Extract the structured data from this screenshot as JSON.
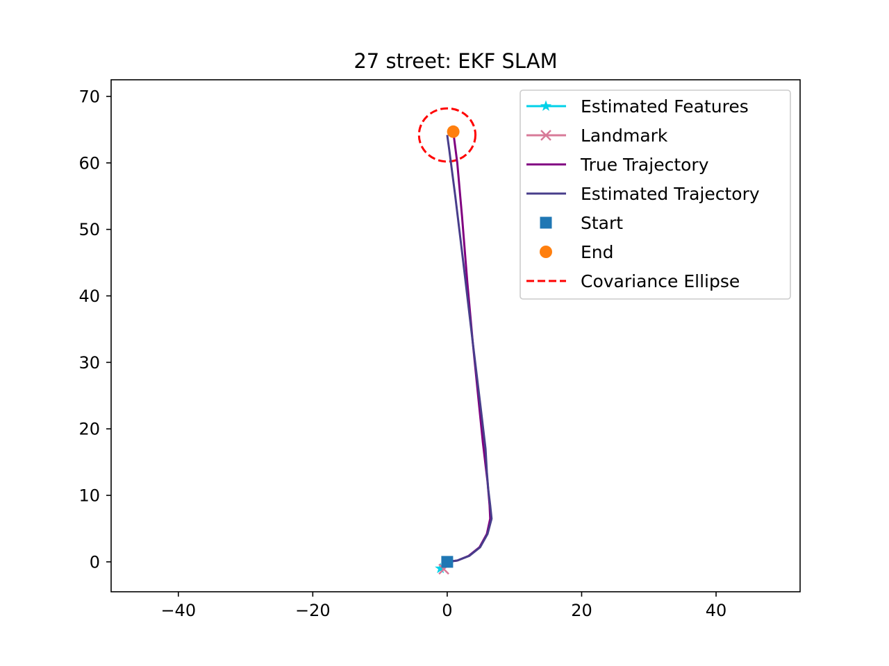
{
  "chart_data": {
    "type": "line",
    "title": "27 street: EKF SLAM",
    "xlabel": "",
    "ylabel": "",
    "xlim": [
      -50,
      52.5
    ],
    "ylim": [
      -4.5,
      72.5
    ],
    "xticks": [
      -40,
      -20,
      0,
      20,
      40
    ],
    "xtick_labels": [
      "−40",
      "−20",
      "0",
      "20",
      "40"
    ],
    "yticks": [
      0,
      10,
      20,
      30,
      40,
      50,
      60,
      70
    ],
    "ytick_labels": [
      "0",
      "10",
      "20",
      "30",
      "40",
      "50",
      "60",
      "70"
    ],
    "grid": false,
    "legend_position": "top-right",
    "series": [
      {
        "name": "Estimated Features",
        "kind": "marker",
        "marker": "star",
        "color": "#00d1e8",
        "points": [
          [
            -1.0,
            -1.0
          ]
        ]
      },
      {
        "name": "Landmark",
        "kind": "marker",
        "marker": "x",
        "color": "#d87a98",
        "points": [
          [
            -0.5,
            -1.1
          ]
        ]
      },
      {
        "name": "True Trajectory",
        "kind": "line",
        "color": "#800080",
        "points": [
          [
            0,
            0
          ],
          [
            1.5,
            0.2
          ],
          [
            3.2,
            0.9
          ],
          [
            4.8,
            2.2
          ],
          [
            5.9,
            4.2
          ],
          [
            6.4,
            6.5
          ],
          [
            6.3,
            8.5
          ],
          [
            6.0,
            12
          ],
          [
            5.3,
            18
          ],
          [
            4.6,
            25
          ],
          [
            3.8,
            33
          ],
          [
            3.0,
            42
          ],
          [
            2.2,
            52
          ],
          [
            1.5,
            60
          ],
          [
            0.9,
            64.7
          ]
        ]
      },
      {
        "name": "Estimated Trajectory",
        "kind": "line",
        "color": "#483d8b",
        "points": [
          [
            0,
            0
          ],
          [
            1.5,
            0.2
          ],
          [
            3.3,
            0.9
          ],
          [
            4.9,
            2.2
          ],
          [
            6.0,
            4.2
          ],
          [
            6.6,
            6.5
          ],
          [
            6.4,
            8.5
          ],
          [
            6.1,
            11
          ],
          [
            5.9,
            13.5
          ],
          [
            5.7,
            17
          ],
          [
            5.0,
            23
          ],
          [
            3.8,
            33
          ],
          [
            2.4,
            45
          ],
          [
            1.2,
            55
          ],
          [
            0.3,
            62
          ],
          [
            0.0,
            64.2
          ]
        ]
      },
      {
        "name": "Start",
        "kind": "marker",
        "marker": "square",
        "color": "#1f77b4",
        "points": [
          [
            0,
            0
          ]
        ]
      },
      {
        "name": "End",
        "kind": "marker",
        "marker": "circle",
        "color": "#ff7f0e",
        "points": [
          [
            0.9,
            64.7
          ]
        ]
      },
      {
        "name": "Covariance Ellipse",
        "kind": "ellipse",
        "color": "#ff0000",
        "dashed": true,
        "center": [
          0.0,
          64.2
        ],
        "radius_x": 4.2,
        "radius_y": 4.0
      }
    ]
  }
}
